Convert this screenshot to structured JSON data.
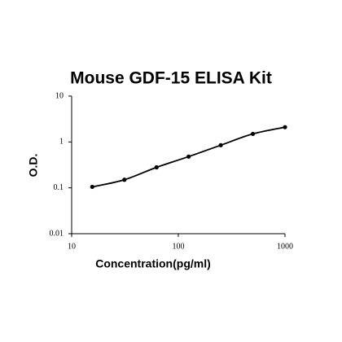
{
  "chart_data": {
    "type": "line",
    "title": "Mouse GDF-15 ELISA Kit",
    "x_label": "Concentration(pg/ml)",
    "y_label": "O.D.",
    "x_scale": "log",
    "y_scale": "log",
    "x": [
      15.6,
      31.25,
      62.5,
      125,
      250,
      500,
      1000
    ],
    "series": [
      {
        "color": "#000000",
        "values": [
          0.105,
          0.15,
          0.28,
          0.48,
          0.85,
          1.5,
          2.1
        ]
      }
    ],
    "xlim": [
      10,
      1000
    ],
    "xticks": [
      10,
      100,
      1000
    ],
    "ylim": [
      0.01,
      10
    ],
    "yticks": [
      0.01,
      0.1,
      1,
      10
    ]
  }
}
